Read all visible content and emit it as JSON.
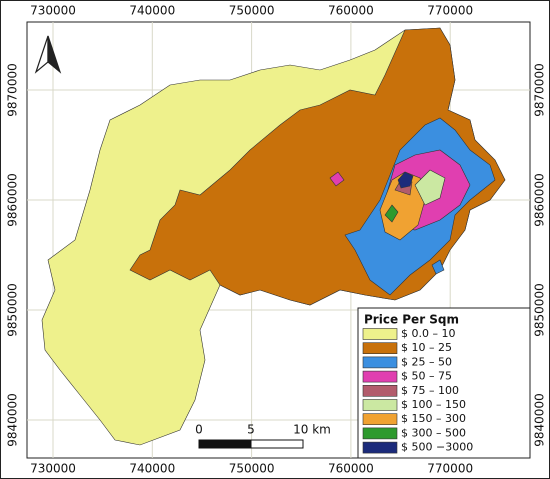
{
  "map": {
    "xticks": [
      730000,
      740000,
      750000,
      760000,
      770000
    ],
    "yticks": [
      9840000,
      9850000,
      9860000,
      9870000
    ],
    "legend": {
      "title": "Price Per Sqm",
      "entries": [
        {
          "label": "$ 0.0 – 10",
          "color": "#eef18c"
        },
        {
          "label": "$ 10 – 25",
          "color": "#c8710b"
        },
        {
          "label": "$ 25 – 50",
          "color": "#3b8fe0"
        },
        {
          "label": "$ 50 – 75",
          "color": "#e03fb0"
        },
        {
          "label": "$ 75 – 100",
          "color": "#b25c6c"
        },
        {
          "label": "$ 100 – 150",
          "color": "#cbe8a2"
        },
        {
          "label": "$ 150 – 300",
          "color": "#f0a232"
        },
        {
          "label": "$ 300 – 500",
          "color": "#2e9a2e"
        },
        {
          "label": "$ 500 −3000",
          "color": "#1b2b7b"
        }
      ]
    },
    "scale_bar": {
      "labels": [
        "0",
        "5",
        "10 km"
      ]
    }
  }
}
